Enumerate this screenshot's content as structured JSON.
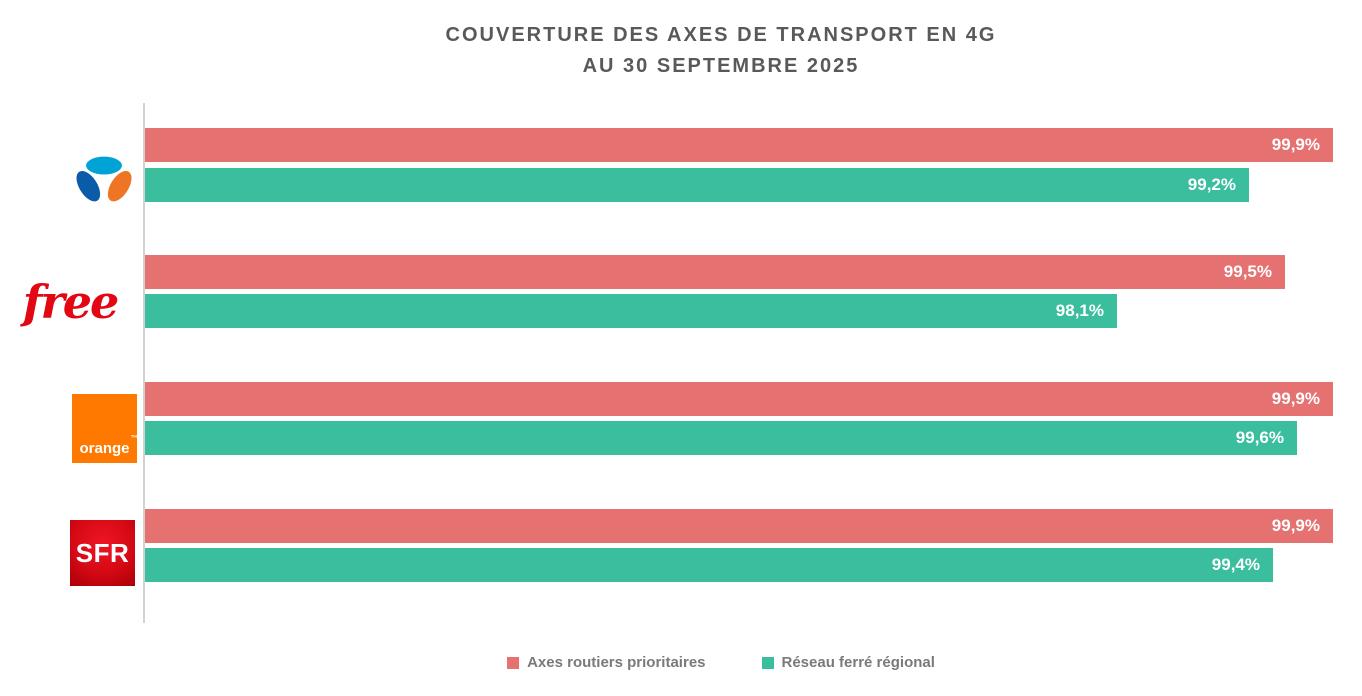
{
  "title": {
    "line1": "COUVERTURE DES AXES DE TRANSPORT EN 4G",
    "line2": "AU 30 SEPTEMBRE 2025"
  },
  "colors": {
    "roads": "#E57171",
    "rail": "#3BBE9E",
    "title_text": "#595959",
    "legend_text": "#7A7A7A",
    "axis_line": "#D2D2D2",
    "free_red": "#E30613",
    "orange_box": "#FF7900",
    "sfr_red": "#D50914",
    "bouygues_cyan": "#00A3D5",
    "bouygues_blue": "#0A5CA9",
    "bouygues_orange": "#EE7524"
  },
  "axis": {
    "min": 90,
    "max": 100
  },
  "operators": [
    {
      "name": "Bouygues Telecom",
      "roads": {
        "value": 99.9,
        "label": "99,9%"
      },
      "rail": {
        "value": 99.2,
        "label": "99,2%"
      }
    },
    {
      "name": "Free",
      "logo_text": "free",
      "roads": {
        "value": 99.5,
        "label": "99,5%"
      },
      "rail": {
        "value": 98.1,
        "label": "98,1%"
      }
    },
    {
      "name": "Orange",
      "logo_text": "orange",
      "logo_tm": "™",
      "roads": {
        "value": 99.9,
        "label": "99,9%"
      },
      "rail": {
        "value": 99.6,
        "label": "99,6%"
      }
    },
    {
      "name": "SFR",
      "logo_text": "SFR",
      "roads": {
        "value": 99.9,
        "label": "99,9%"
      },
      "rail": {
        "value": 99.4,
        "label": "99,4%"
      }
    }
  ],
  "legend": [
    {
      "label": "Axes routiers prioritaires",
      "color": "#E57171"
    },
    {
      "label": "Réseau ferré régional",
      "color": "#3BBE9E"
    }
  ],
  "chart_data": {
    "type": "bar",
    "orientation": "horizontal",
    "title": "COUVERTURE DES AXES DE TRANSPORT EN 4G AU 30 SEPTEMBRE 2025",
    "categories": [
      "Bouygues Telecom",
      "Free",
      "Orange",
      "SFR"
    ],
    "series": [
      {
        "name": "Axes routiers prioritaires",
        "color": "#E57171",
        "values": [
          99.9,
          99.5,
          99.9,
          99.9
        ],
        "labels": [
          "99,9%",
          "99,5%",
          "99,9%",
          "99,9%"
        ]
      },
      {
        "name": "Réseau ferré régional",
        "color": "#3BBE9E",
        "values": [
          99.2,
          98.1,
          99.6,
          99.4
        ],
        "labels": [
          "99,2%",
          "98,1%",
          "99,6%",
          "99,4%"
        ]
      }
    ],
    "xlim": [
      90,
      100
    ],
    "grid": false,
    "legend_position": "bottom",
    "value_labels": "inside-end",
    "value_label_color": "#FFFFFF"
  }
}
